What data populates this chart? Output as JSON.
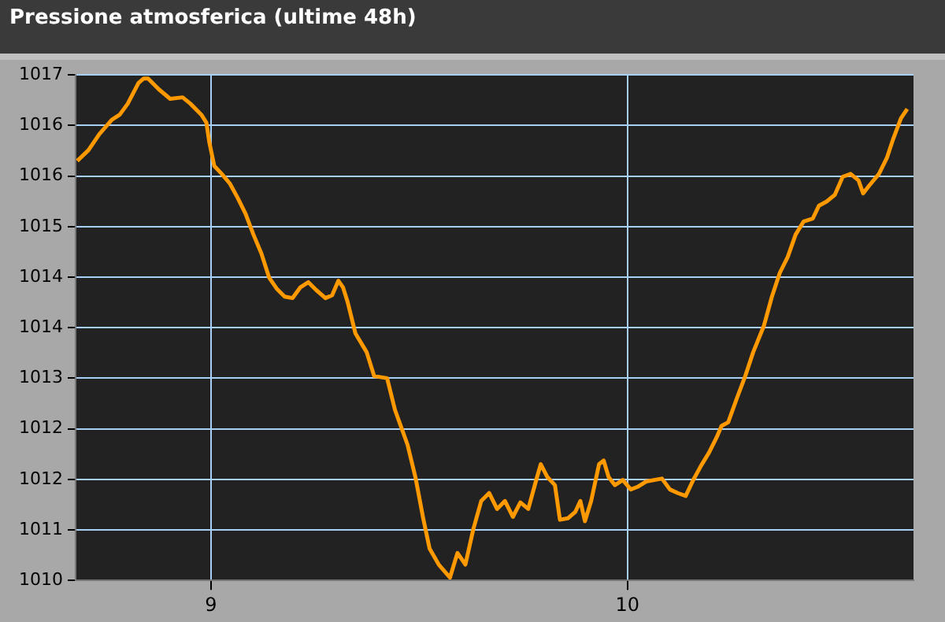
{
  "chart_data": {
    "type": "line",
    "title": "Pressione atmosferica (ultime 48h)",
    "x": [
      8.679,
      8.706,
      8.732,
      8.762,
      8.781,
      8.8,
      8.826,
      8.838,
      8.849,
      8.875,
      8.902,
      8.932,
      8.951,
      8.977,
      8.989,
      8.996,
      9.008,
      9.026,
      9.045,
      9.064,
      9.083,
      9.102,
      9.121,
      9.14,
      9.158,
      9.177,
      9.196,
      9.215,
      9.234,
      9.253,
      9.275,
      9.291,
      9.306,
      9.317,
      9.328,
      9.347,
      9.374,
      9.392,
      9.423,
      9.442,
      9.472,
      9.491,
      9.509,
      9.525,
      9.547,
      9.574,
      9.592,
      9.611,
      9.63,
      9.649,
      9.668,
      9.687,
      9.706,
      9.725,
      9.743,
      9.762,
      9.781,
      9.792,
      9.808,
      9.826,
      9.838,
      9.857,
      9.875,
      9.887,
      9.898,
      9.913,
      9.932,
      9.943,
      9.955,
      9.97,
      9.989,
      10.008,
      10.026,
      10.045,
      10.083,
      10.102,
      10.121,
      10.14,
      10.158,
      10.177,
      10.196,
      10.215,
      10.226,
      10.242,
      10.264,
      10.283,
      10.302,
      10.328,
      10.347,
      10.366,
      10.385,
      10.404,
      10.423,
      10.445,
      10.46,
      10.479,
      10.498,
      10.517,
      10.536,
      10.555,
      10.566,
      10.581,
      10.604,
      10.623,
      10.638,
      10.657,
      10.672
    ],
    "series": [
      {
        "color": "#ff9900",
        "values": [
          1015.96,
          1016.11,
          1016.33,
          1016.53,
          1016.6,
          1016.75,
          1017.04,
          1017.1,
          1017.1,
          1016.95,
          1016.82,
          1016.84,
          1016.75,
          1016.6,
          1016.49,
          1016.22,
          1015.89,
          1015.78,
          1015.65,
          1015.45,
          1015.23,
          1014.94,
          1014.68,
          1014.34,
          1014.19,
          1014.08,
          1014.06,
          1014.21,
          1014.28,
          1014.17,
          1014.06,
          1014.1,
          1014.3,
          1014.21,
          1014.01,
          1013.57,
          1013.31,
          1012.98,
          1012.95,
          1012.51,
          1012.03,
          1011.58,
          1011.03,
          1010.59,
          1010.37,
          1010.19,
          1010.53,
          1010.37,
          1010.86,
          1011.25,
          1011.36,
          1011.14,
          1011.25,
          1011.03,
          1011.23,
          1011.14,
          1011.54,
          1011.76,
          1011.58,
          1011.47,
          1010.99,
          1011.01,
          1011.1,
          1011.25,
          1010.97,
          1011.25,
          1011.76,
          1011.81,
          1011.58,
          1011.47,
          1011.54,
          1011.41,
          1011.45,
          1011.52,
          1011.56,
          1011.41,
          1011.36,
          1011.32,
          1011.54,
          1011.74,
          1011.92,
          1012.14,
          1012.29,
          1012.34,
          1012.69,
          1012.98,
          1013.31,
          1013.68,
          1014.08,
          1014.41,
          1014.63,
          1014.94,
          1015.12,
          1015.16,
          1015.34,
          1015.4,
          1015.49,
          1015.74,
          1015.78,
          1015.69,
          1015.51,
          1015.62,
          1015.78,
          1016,
          1016.26,
          1016.55,
          1016.68
        ]
      }
    ],
    "xlim": [
      8.675,
      10.687
    ],
    "xticks": [
      9,
      10
    ],
    "ylim": [
      1010.15,
      1017.15
    ],
    "yticks": [
      {
        "value": 1010.15,
        "label": "1010"
      },
      {
        "value": 1010.85,
        "label": "1011"
      },
      {
        "value": 1011.55,
        "label": "1012"
      },
      {
        "value": 1012.25,
        "label": "1012"
      },
      {
        "value": 1012.95,
        "label": "1013"
      },
      {
        "value": 1013.65,
        "label": "1014"
      },
      {
        "value": 1014.35,
        "label": "1014"
      },
      {
        "value": 1015.05,
        "label": "1015"
      },
      {
        "value": 1015.75,
        "label": "1016"
      },
      {
        "value": 1016.45,
        "label": "1016"
      },
      {
        "value": 1017.15,
        "label": "1017"
      }
    ],
    "grid": true,
    "legend": false,
    "marker": "none",
    "line_style": "solid"
  }
}
